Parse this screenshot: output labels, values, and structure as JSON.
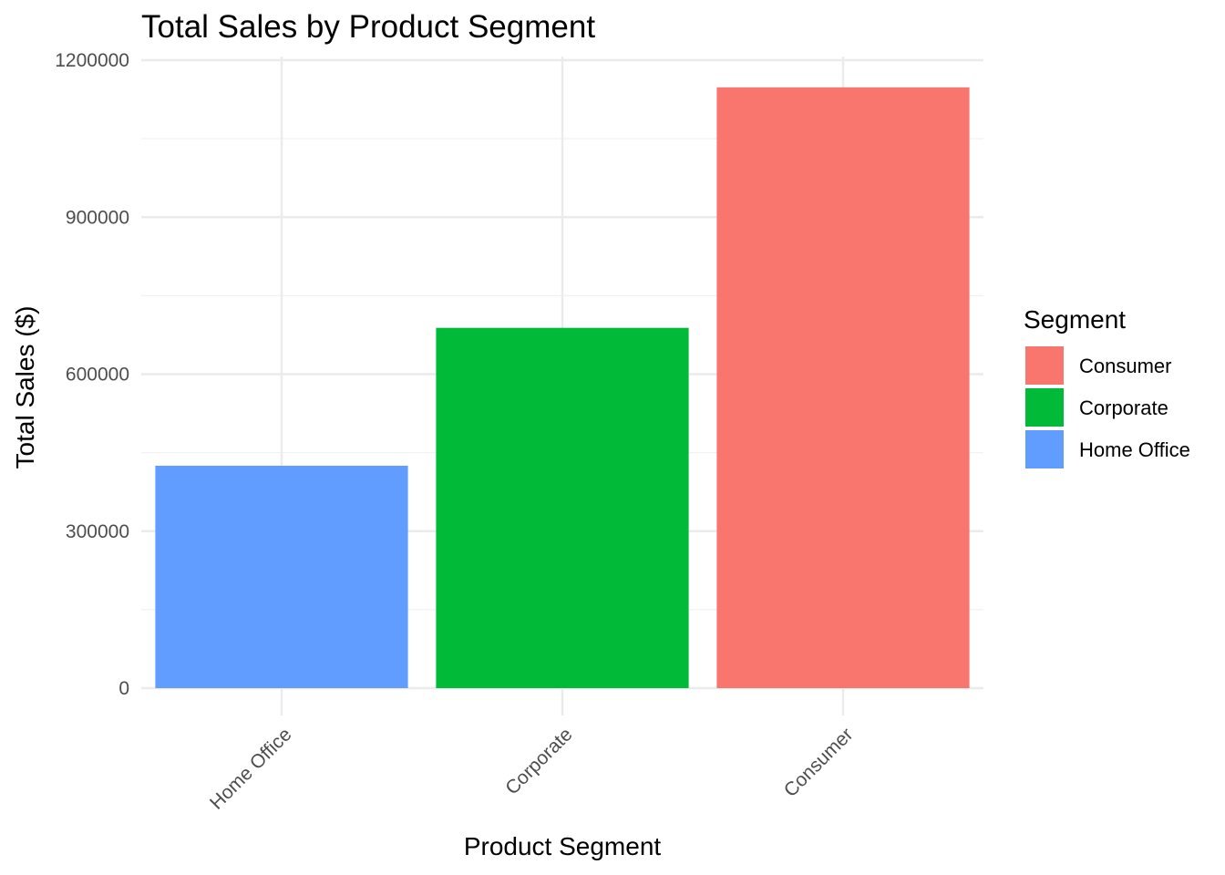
{
  "chart_data": {
    "type": "bar",
    "title": "Total Sales by Product Segment",
    "xlabel": "Product Segment",
    "ylabel": "Total Sales ($)",
    "categories": [
      "Home Office",
      "Corporate",
      "Consumer"
    ],
    "values": [
      424982,
      688494,
      1148061
    ],
    "colors": [
      "#619CFF",
      "#00BA38",
      "#F8766D"
    ],
    "ylim": [
      0,
      1200000
    ],
    "yticks": [
      0,
      300000,
      600000,
      900000,
      1200000
    ],
    "yticks_minor": [
      150000,
      450000,
      750000,
      1050000
    ],
    "grid": true,
    "legend": {
      "title": "Segment",
      "placement": "right",
      "items": [
        {
          "label": "Consumer",
          "color": "#F8766D"
        },
        {
          "label": "Corporate",
          "color": "#00BA38"
        },
        {
          "label": "Home Office",
          "color": "#619CFF"
        }
      ]
    }
  }
}
